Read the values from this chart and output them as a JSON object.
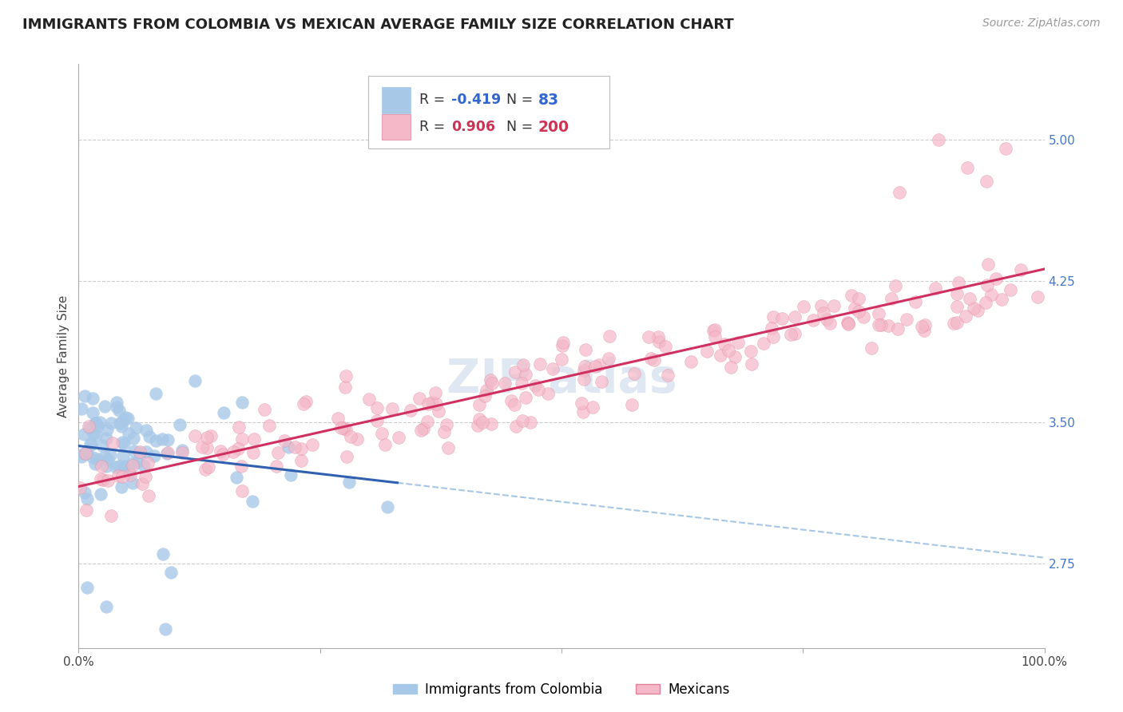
{
  "title": "IMMIGRANTS FROM COLOMBIA VS MEXICAN AVERAGE FAMILY SIZE CORRELATION CHART",
  "source": "Source: ZipAtlas.com",
  "ylabel": "Average Family Size",
  "right_yticks": [
    2.75,
    3.5,
    4.25,
    5.0
  ],
  "background_color": "#ffffff",
  "colombia_color": "#a8c8e8",
  "colombia_edge": "#a8c8e8",
  "mexico_color": "#f4b8c8",
  "mexico_edge": "#e08098",
  "trend_colombia_solid_color": "#3060b0",
  "trend_colombia_dash_color": "#90b8e0",
  "trend_mexico_color": "#d03060",
  "grid_color": "#cccccc",
  "R_colombia": -0.419,
  "N_colombia": 83,
  "R_mexico": 0.906,
  "N_mexico": 200,
  "xlim": [
    0.0,
    1.0
  ],
  "ylim": [
    2.3,
    5.4
  ],
  "colombia_seed": 42,
  "mexico_seed": 7,
  "title_fontsize": 13,
  "source_fontsize": 10,
  "tick_fontsize": 11,
  "ylabel_fontsize": 11,
  "legend_r_col_color": "#3366cc",
  "legend_n_col_color": "#3366cc",
  "legend_r_mex_color": "#cc3355",
  "legend_n_mex_color": "#cc3355",
  "ytick_color": "#4477cc"
}
